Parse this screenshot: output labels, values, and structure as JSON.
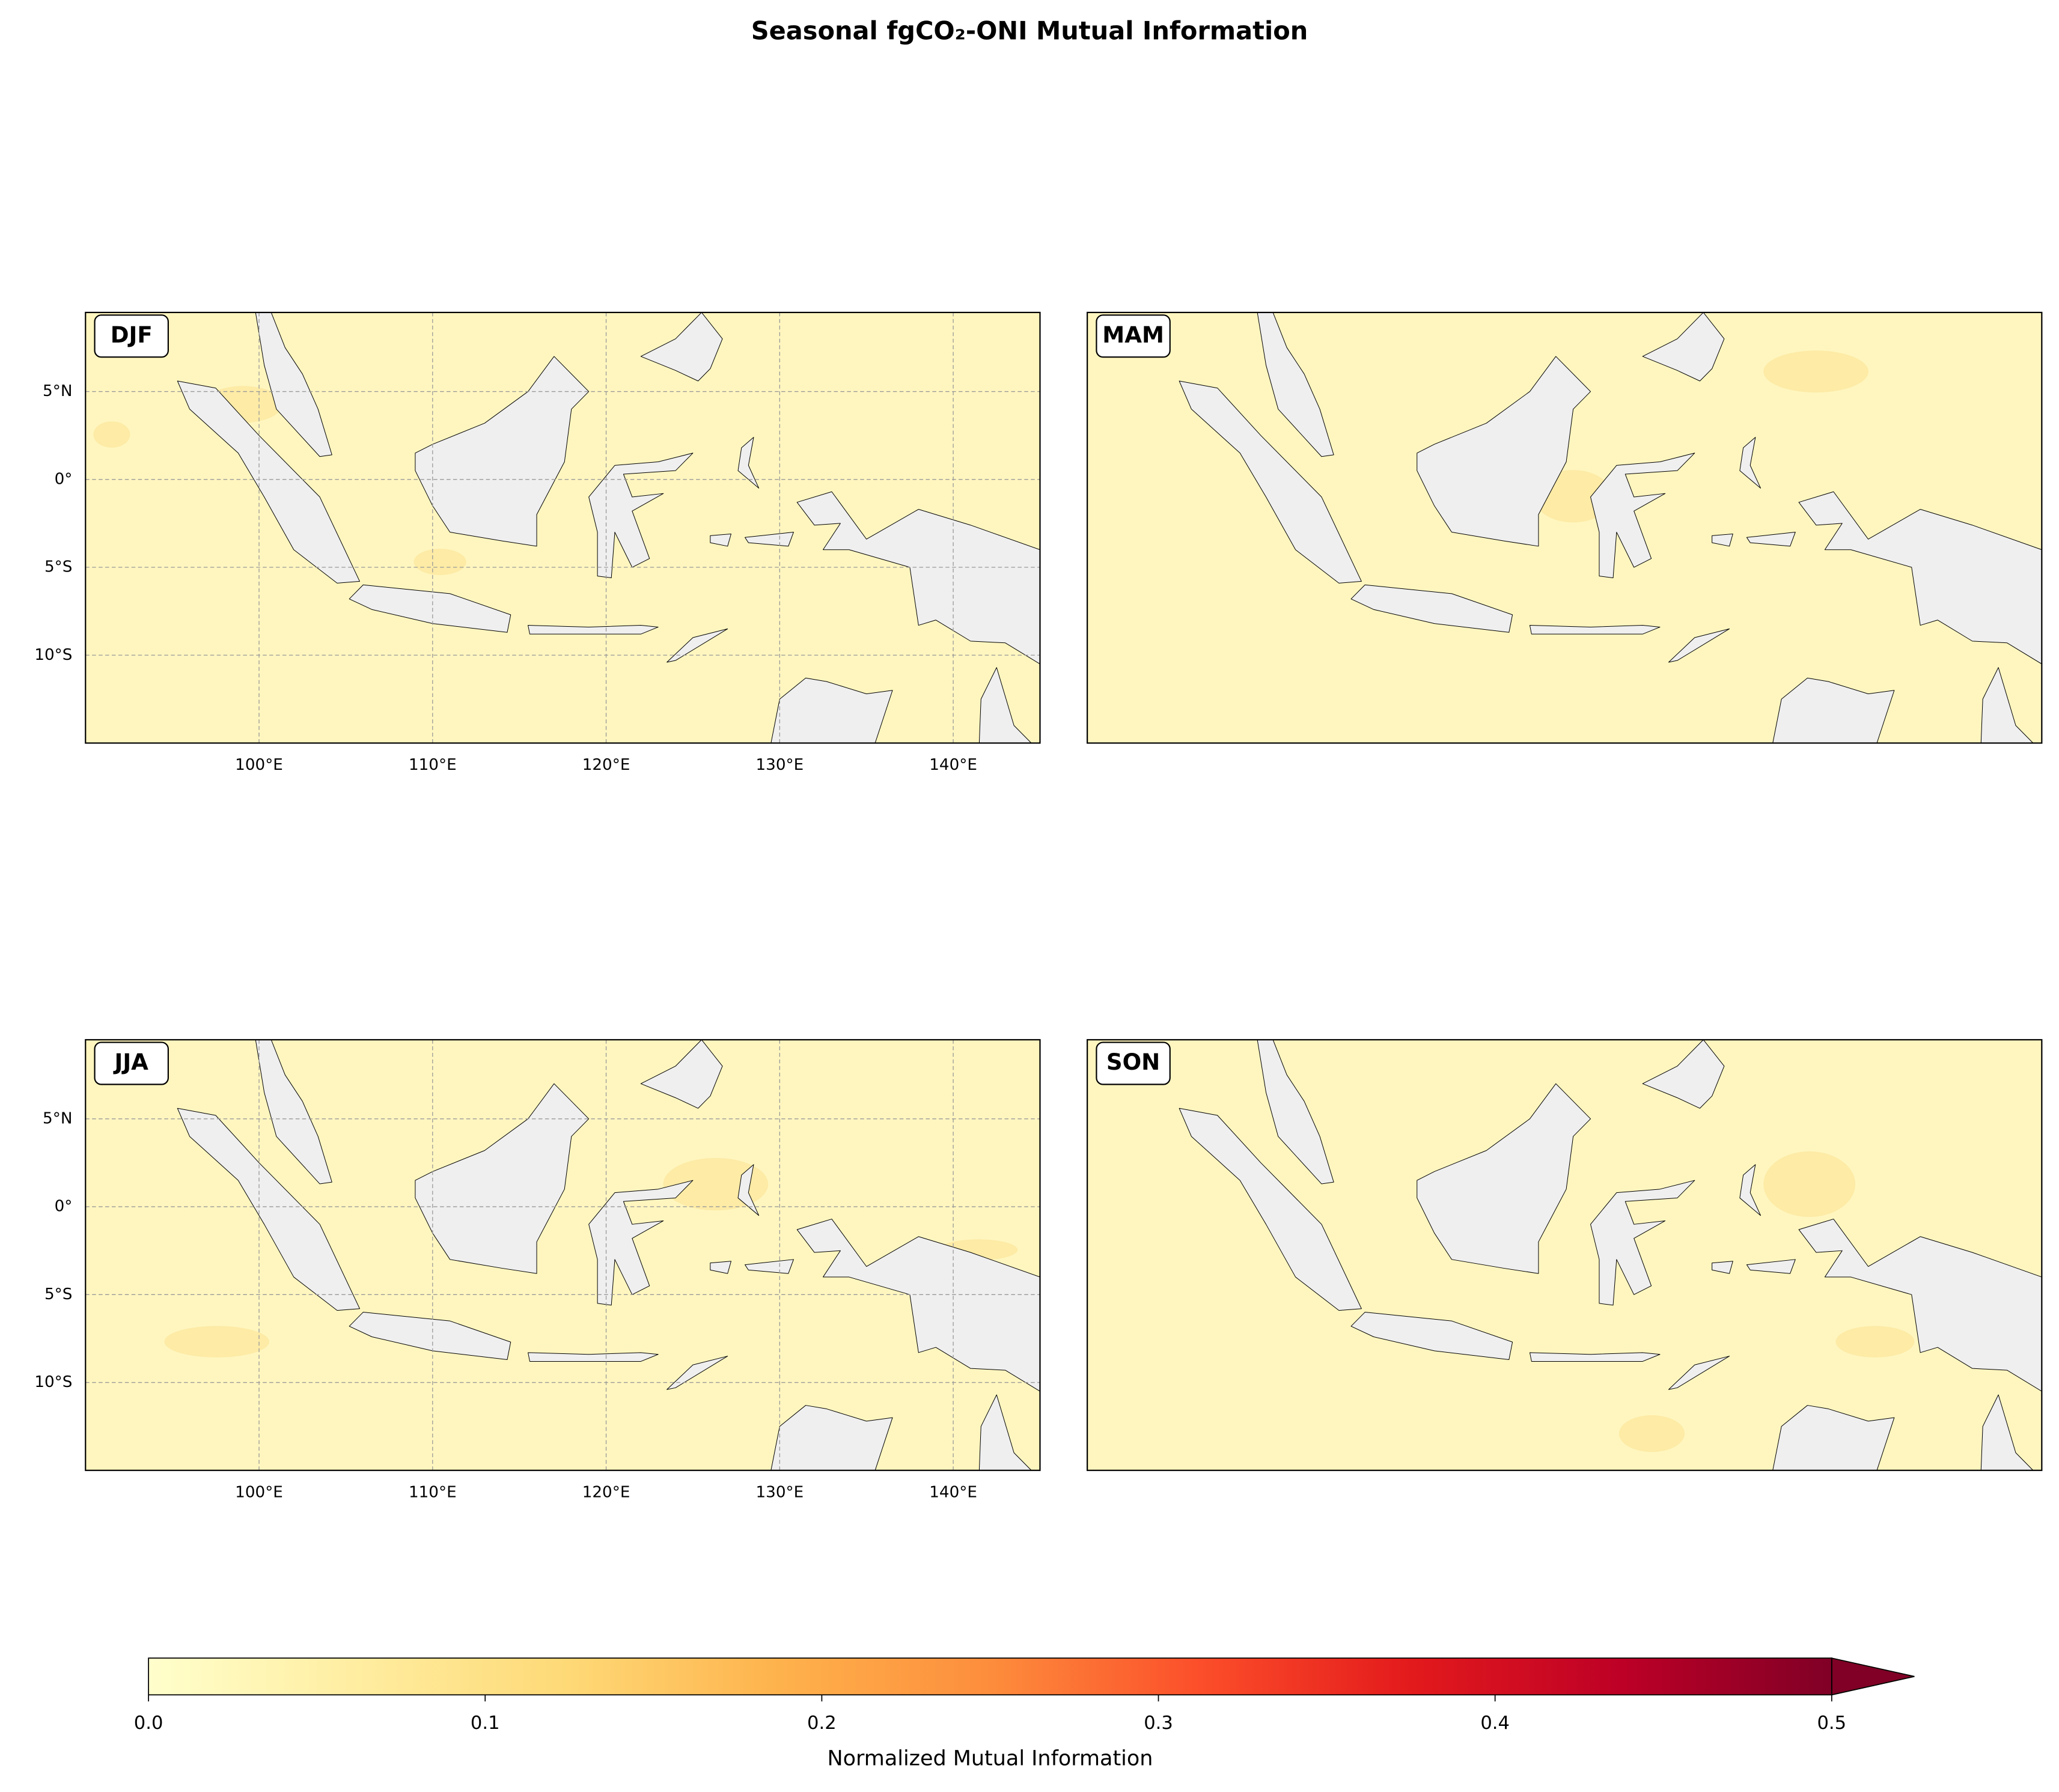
{
  "title": "Seasonal fgCO₂-ONI Mutual Information",
  "panels": [
    {
      "label": "DJF"
    },
    {
      "label": "MAM"
    },
    {
      "label": "JJA"
    },
    {
      "label": "SON"
    }
  ],
  "xlim": [
    90,
    145
  ],
  "ylim": [
    -15,
    9.5
  ],
  "xticks": [
    {
      "value": 100,
      "label": "100°E"
    },
    {
      "value": 110,
      "label": "110°E"
    },
    {
      "value": 120,
      "label": "120°E"
    },
    {
      "value": 130,
      "label": "130°E"
    },
    {
      "value": 140,
      "label": "140°E"
    }
  ],
  "yticks": [
    {
      "value": 5,
      "label": "5°N"
    },
    {
      "value": 0,
      "label": "0°"
    },
    {
      "value": -5,
      "label": "5°S"
    },
    {
      "value": -10,
      "label": "10°S"
    }
  ],
  "colorbar": {
    "label": "Normalized Mutual Information",
    "lim": [
      0,
      0.5
    ],
    "ticks": [
      {
        "value": 0,
        "label": "0.0"
      },
      0.1,
      0.2,
      0.3,
      0.4,
      0.5
    ]
  }
}
